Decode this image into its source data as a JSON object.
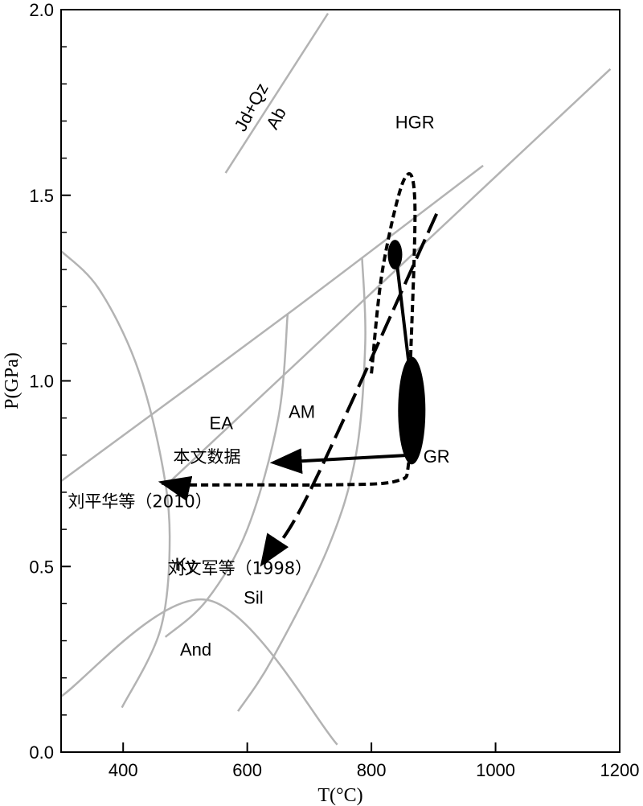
{
  "chart_data": {
    "type": "line",
    "xlabel": "T(°C)",
    "ylabel": "P(GPa)",
    "xlim": [
      300,
      1200
    ],
    "ylim": [
      0.0,
      2.0
    ],
    "xticks": [
      400,
      600,
      800,
      1000,
      1200
    ],
    "xtick_labels": [
      "400",
      "600",
      "800",
      "1000",
      "1200"
    ],
    "yticks": [
      0.0,
      0.5,
      1.0,
      1.5,
      2.0
    ],
    "ytick_labels": [
      "0.0",
      "0.5",
      "1.0",
      "1.5",
      "2.0"
    ],
    "grid": false,
    "colors": {
      "reaction": "#b3b3b3",
      "path": "#000000"
    },
    "reaction_lines": [
      {
        "points": [
          [
            565,
            1.56
          ],
          [
            730,
            1.99
          ]
        ]
      },
      {
        "points": [
          [
            300,
            0.73
          ],
          [
            665,
            1.18
          ],
          [
            980,
            1.58
          ]
        ]
      },
      {
        "points": [
          [
            665,
            1.18
          ],
          [
            650,
            0.9
          ],
          [
            600,
            0.6
          ],
          [
            535,
            0.41
          ],
          [
            468,
            0.31
          ]
        ]
      },
      {
        "points": [
          [
            785,
            1.33
          ],
          [
            790,
            1.1
          ],
          [
            775,
            0.8
          ],
          [
            730,
            0.55
          ],
          [
            640,
            0.25
          ],
          [
            585,
            0.11
          ]
        ]
      },
      {
        "points": [
          [
            470,
            0.72
          ],
          [
            1185,
            1.84
          ]
        ]
      },
      {
        "points": [
          [
            300,
            0.15
          ],
          [
            535,
            0.41
          ],
          [
            745,
            0.02
          ]
        ]
      },
      {
        "points": [
          [
            300,
            1.35
          ],
          [
            360,
            1.25
          ],
          [
            420,
            1.05
          ],
          [
            460,
            0.8
          ],
          [
            475,
            0.58
          ],
          [
            460,
            0.33
          ],
          [
            398,
            0.12
          ]
        ]
      }
    ],
    "field_labels": [
      {
        "text": "Jd+Qz",
        "x": 615,
        "y": 1.73,
        "rotate": -62
      },
      {
        "text": "Ab",
        "x": 655,
        "y": 1.7,
        "rotate": -62
      },
      {
        "text": "HGR",
        "x": 870,
        "y": 1.68
      },
      {
        "text": "EA",
        "x": 558,
        "y": 0.87
      },
      {
        "text": "AM",
        "x": 688,
        "y": 0.9
      },
      {
        "text": "GR",
        "x": 905,
        "y": 0.78
      },
      {
        "text": "Ky",
        "x": 500,
        "y": 0.49
      },
      {
        "text": "Sil",
        "x": 610,
        "y": 0.4
      },
      {
        "text": "And",
        "x": 517,
        "y": 0.26
      }
    ],
    "series": [
      {
        "label": "本文数据",
        "label_pos": {
          "x": 535,
          "y": 0.78
        },
        "style": "solid",
        "points": [
          [
            838,
            1.36
          ],
          [
            860,
            1.05
          ],
          [
            862,
            0.8
          ],
          [
            644,
            0.78
          ]
        ],
        "marker_ellipses": [
          {
            "cx": 838,
            "cy": 1.34,
            "rx": 9,
            "ry": 0.04
          },
          {
            "cx": 865,
            "cy": 0.92,
            "rx": 17,
            "ry": 0.145
          }
        ]
      },
      {
        "label": "刘平华等（2010）",
        "label_pos": {
          "x": 427,
          "y": 0.66
        },
        "style": "short-dash",
        "points": [
          [
            800,
            1.02
          ],
          [
            818,
            1.3
          ],
          [
            852,
            1.54
          ],
          [
            870,
            1.48
          ],
          [
            862,
            1.0
          ],
          [
            860,
            0.78
          ],
          [
            840,
            0.73
          ],
          [
            740,
            0.72
          ],
          [
            600,
            0.72
          ],
          [
            480,
            0.72
          ],
          [
            464,
            0.726
          ]
        ]
      },
      {
        "label": "刘文军等（1998）",
        "label_pos": {
          "x": 588,
          "y": 0.48
        },
        "style": "long-dash",
        "points": [
          [
            905,
            1.45
          ],
          [
            700,
            0.7
          ],
          [
            625,
            0.51
          ]
        ]
      }
    ]
  }
}
